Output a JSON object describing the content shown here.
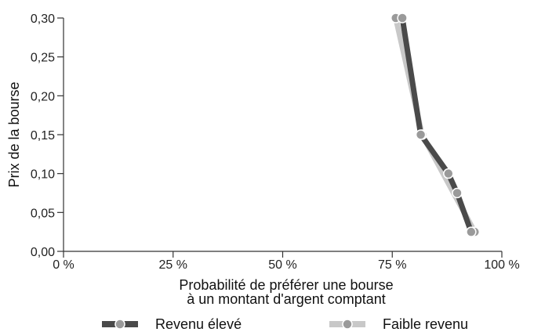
{
  "chart_data": {
    "type": "line",
    "xlabel_lines": [
      "Probabilité de préférer une bourse",
      "à un montant d'argent comptant"
    ],
    "ylabel": "Prix de la bourse",
    "xlim": [
      0,
      100
    ],
    "ylim": [
      0,
      0.3
    ],
    "x_ticks": [
      0,
      25,
      50,
      75,
      100
    ],
    "x_tick_labels": [
      "0 %",
      "25 %",
      "50 %",
      "75 %",
      "100 %"
    ],
    "y_ticks": [
      0,
      0.05,
      0.1,
      0.15,
      0.2,
      0.25,
      0.3
    ],
    "y_tick_labels": [
      "0,00",
      "0,05",
      "0,10",
      "0,15",
      "0,20",
      "0,25",
      "0,30"
    ],
    "grid": false,
    "legend_position": "bottom",
    "series": [
      {
        "name": "Faible revenu",
        "color": "#c8c8c8",
        "points": [
          {
            "x": 75.8,
            "y": 0.3
          },
          {
            "x": 81.8,
            "y": 0.15
          },
          {
            "x": 93.8,
            "y": 0.025
          }
        ]
      },
      {
        "name": "Revenu élevé",
        "color": "#4a4a4a",
        "points": [
          {
            "x": 77.3,
            "y": 0.3
          },
          {
            "x": 81.5,
            "y": 0.15
          },
          {
            "x": 87.8,
            "y": 0.1
          },
          {
            "x": 89.8,
            "y": 0.075
          },
          {
            "x": 93.0,
            "y": 0.025
          }
        ]
      }
    ],
    "marker_color": "#9a9a9a",
    "legend_order": [
      "Revenu élevé",
      "Faible revenu"
    ]
  }
}
